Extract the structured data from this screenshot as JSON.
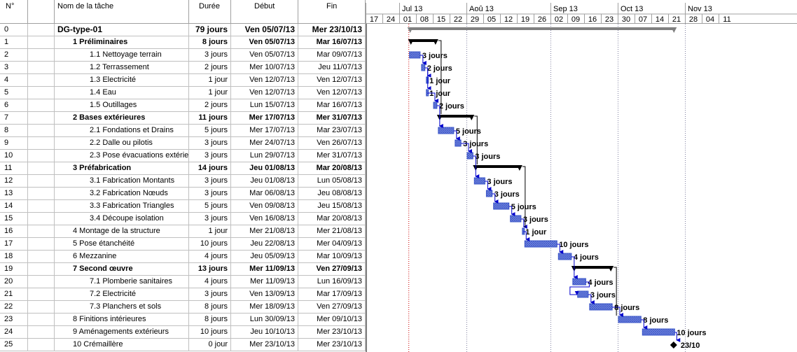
{
  "headers": {
    "id": "N°",
    "name": "Nom de la tâche",
    "duration": "Durée",
    "start": "Début",
    "end": "Fin"
  },
  "timescale": {
    "months": [
      "Jul 13",
      "Aoû 13",
      "Sep 13",
      "Oct 13",
      "Nov 13"
    ],
    "weeks": [
      "17",
      "24",
      "01",
      "08",
      "15",
      "22",
      "29",
      "05",
      "12",
      "19",
      "26",
      "02",
      "09",
      "16",
      "23",
      "30",
      "07",
      "14",
      "21",
      "28",
      "04",
      "11"
    ]
  },
  "tasks": [
    {
      "id": "0",
      "name": "DG-type-01",
      "duration": "79 jours",
      "start": "Ven 05/07/13",
      "end": "Mer 23/10/13",
      "level": 0,
      "summary": true,
      "project": true
    },
    {
      "id": "1",
      "name": "1 Préliminaires",
      "duration": "8 jours",
      "start": "Ven 05/07/13",
      "end": "Mar 16/07/13",
      "level": 1,
      "summary": true
    },
    {
      "id": "2",
      "name": "1.1 Nettoyage terrain",
      "duration": "3 jours",
      "start": "Ven 05/07/13",
      "end": "Mar 09/07/13",
      "level": 2
    },
    {
      "id": "3",
      "name": "1.2 Terrassement",
      "duration": "2 jours",
      "start": "Mer 10/07/13",
      "end": "Jeu 11/07/13",
      "level": 2
    },
    {
      "id": "4",
      "name": "1.3 Electricité",
      "duration": "1 jour",
      "start": "Ven 12/07/13",
      "end": "Ven 12/07/13",
      "level": 2
    },
    {
      "id": "5",
      "name": "1.4 Eau",
      "duration": "1 jour",
      "start": "Ven 12/07/13",
      "end": "Ven 12/07/13",
      "level": 2
    },
    {
      "id": "6",
      "name": "1.5 Outillages",
      "duration": "2 jours",
      "start": "Lun 15/07/13",
      "end": "Mar 16/07/13",
      "level": 2
    },
    {
      "id": "7",
      "name": "2 Bases extérieures",
      "duration": "11 jours",
      "start": "Mer 17/07/13",
      "end": "Mer 31/07/13",
      "level": 1,
      "summary": true
    },
    {
      "id": "8",
      "name": "2.1 Fondations et Drains",
      "duration": "5 jours",
      "start": "Mer 17/07/13",
      "end": "Mar 23/07/13",
      "level": 2
    },
    {
      "id": "9",
      "name": "2.2 Dalle ou pilotis",
      "duration": "3 jours",
      "start": "Mer 24/07/13",
      "end": "Ven 26/07/13",
      "level": 2
    },
    {
      "id": "10",
      "name": "2.3 Pose évacuations extérie",
      "duration": "3 jours",
      "start": "Lun 29/07/13",
      "end": "Mer 31/07/13",
      "level": 2
    },
    {
      "id": "11",
      "name": "3 Préfabrication",
      "duration": "14 jours",
      "start": "Jeu 01/08/13",
      "end": "Mar 20/08/13",
      "level": 1,
      "summary": true
    },
    {
      "id": "12",
      "name": "3.1 Fabrication Montants",
      "duration": "3 jours",
      "start": "Jeu 01/08/13",
      "end": "Lun 05/08/13",
      "level": 2
    },
    {
      "id": "13",
      "name": "3.2 Fabrication  Nœuds",
      "duration": "3 jours",
      "start": "Mar 06/08/13",
      "end": "Jeu 08/08/13",
      "level": 2
    },
    {
      "id": "14",
      "name": "3.3 Fabrication  Triangles",
      "duration": "5 jours",
      "start": "Ven 09/08/13",
      "end": "Jeu 15/08/13",
      "level": 2
    },
    {
      "id": "15",
      "name": "3.4 Découpe isolation",
      "duration": "3 jours",
      "start": "Ven 16/08/13",
      "end": "Mar 20/08/13",
      "level": 2
    },
    {
      "id": "16",
      "name": "4 Montage de la structure",
      "duration": "1 jour",
      "start": "Mer 21/08/13",
      "end": "Mer 21/08/13",
      "level": 1
    },
    {
      "id": "17",
      "name": "5 Pose étanchéité",
      "duration": "10 jours",
      "start": "Jeu 22/08/13",
      "end": "Mer 04/09/13",
      "level": 1
    },
    {
      "id": "18",
      "name": "6 Mezzanine",
      "duration": "4 jours",
      "start": "Jeu 05/09/13",
      "end": "Mar 10/09/13",
      "level": 1
    },
    {
      "id": "19",
      "name": "7 Second œuvre",
      "duration": "13 jours",
      "start": "Mer 11/09/13",
      "end": "Ven 27/09/13",
      "level": 1,
      "summary": true
    },
    {
      "id": "20",
      "name": "7.1 Plomberie sanitaires",
      "duration": "4 jours",
      "start": "Mer 11/09/13",
      "end": "Lun 16/09/13",
      "level": 2
    },
    {
      "id": "21",
      "name": "7.2 Electricité",
      "duration": "3 jours",
      "start": "Ven 13/09/13",
      "end": "Mar 17/09/13",
      "level": 2
    },
    {
      "id": "22",
      "name": "7.3 Planchers et sols",
      "duration": "8 jours",
      "start": "Mer 18/09/13",
      "end": "Ven 27/09/13",
      "level": 2
    },
    {
      "id": "23",
      "name": "8 Finitions intérieures",
      "duration": "8 jours",
      "start": "Lun 30/09/13",
      "end": "Mer 09/10/13",
      "level": 1
    },
    {
      "id": "24",
      "name": "9 Aménagements extérieurs",
      "duration": "10 jours",
      "start": "Jeu 10/10/13",
      "end": "Mer 23/10/13",
      "level": 1
    },
    {
      "id": "25",
      "name": "10 Crémaillère",
      "duration": "0 jour",
      "start": "Mer 23/10/13",
      "end": "Mer 23/10/13",
      "level": 1,
      "milestone": true
    }
  ],
  "bar_labels": [
    "",
    "",
    "3 jours",
    "2 jours",
    "1 jour",
    "1 jour",
    "2 jours",
    "",
    "5 jours",
    "3 jours",
    "3 jours",
    "",
    "3 jours",
    "3 jours",
    "5 jours",
    "3 jours",
    "1 jour",
    "10 jours",
    "4 jours",
    "",
    "4 jours",
    "3 jours",
    "8 jours",
    "8 jours",
    "10 jours",
    "23/10"
  ],
  "colors": {
    "task_bar": "#3a55c8",
    "summary_bar": "#000000",
    "project_bar": "#808080",
    "link": "#0000cc",
    "status_line": "#cc0000"
  }
}
